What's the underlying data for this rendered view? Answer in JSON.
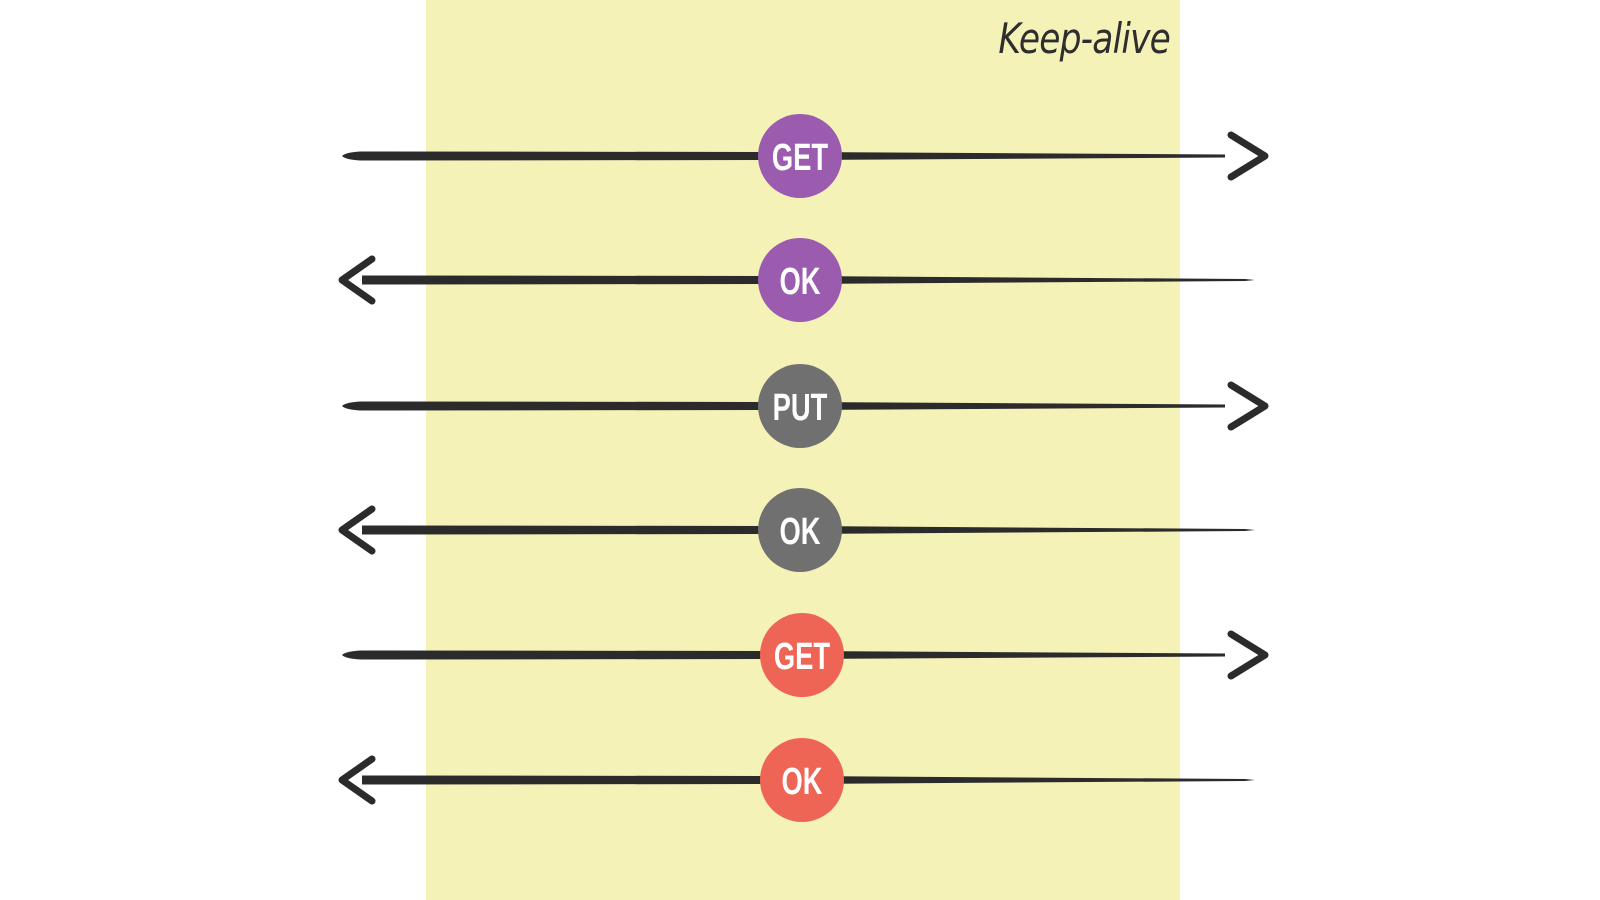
{
  "diagram": {
    "zone": {
      "label": "Keep-alive",
      "fill": "#f5f2b8",
      "text_color": "#2e2e2e"
    },
    "line_color": "#2b2b2b",
    "badge_text_color": "#ffffff",
    "messages": [
      {
        "label": "GET",
        "direction": "right",
        "color": "#9b5cb0"
      },
      {
        "label": "OK",
        "direction": "left",
        "color": "#9b5cb0"
      },
      {
        "label": "PUT",
        "direction": "right",
        "color": "#707070"
      },
      {
        "label": "OK",
        "direction": "left",
        "color": "#707070"
      },
      {
        "label": "GET",
        "direction": "right",
        "color": "#ee6555"
      },
      {
        "label": "OK",
        "direction": "left",
        "color": "#ee6555"
      }
    ]
  }
}
